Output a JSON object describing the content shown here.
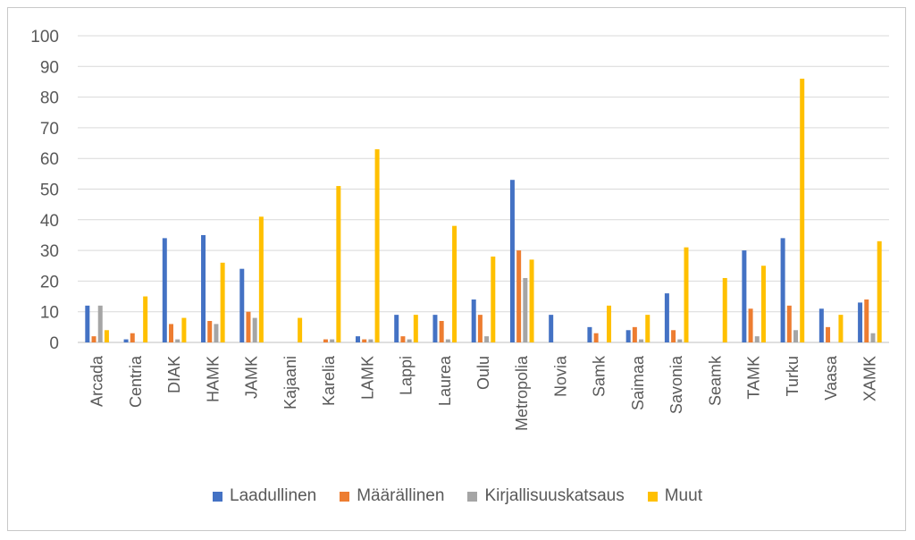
{
  "chart_data": {
    "type": "bar",
    "title": "",
    "xlabel": "",
    "ylabel": "",
    "ylim": [
      0,
      100
    ],
    "yticks": [
      0,
      10,
      20,
      30,
      40,
      50,
      60,
      70,
      80,
      90,
      100
    ],
    "grid": true,
    "legend_position": "bottom",
    "categories": [
      "Arcada",
      "Centria",
      "DIAK",
      "HAMK",
      "JAMK",
      "Kajaani",
      "Karelia",
      "LAMK",
      "Lappi",
      "Laurea",
      "Oulu",
      "Metropolia",
      "Novia",
      "Samk",
      "Saimaa",
      "Savonia",
      "Seamk",
      "TAMK",
      "Turku",
      "Vaasa",
      "XAMK"
    ],
    "series": [
      {
        "name": "Laadullinen",
        "color": "#4472C4",
        "values": [
          12,
          1,
          34,
          35,
          24,
          0,
          0,
          2,
          9,
          9,
          14,
          53,
          9,
          5,
          4,
          16,
          0,
          30,
          34,
          11,
          13
        ]
      },
      {
        "name": "Määrällinen",
        "color": "#ED7D31",
        "values": [
          2,
          3,
          6,
          7,
          10,
          0,
          1,
          1,
          2,
          7,
          9,
          30,
          0,
          3,
          5,
          4,
          0,
          11,
          12,
          5,
          14
        ]
      },
      {
        "name": "Kirjallisuuskatsaus",
        "color": "#A5A5A5",
        "values": [
          12,
          0,
          1,
          6,
          8,
          0,
          1,
          1,
          1,
          1,
          2,
          21,
          0,
          0,
          1,
          1,
          0,
          2,
          4,
          0,
          3
        ]
      },
      {
        "name": "Muut",
        "color": "#FFC000",
        "values": [
          4,
          15,
          8,
          26,
          41,
          8,
          51,
          63,
          9,
          38,
          28,
          27,
          0,
          12,
          9,
          31,
          21,
          25,
          86,
          9,
          33
        ]
      }
    ]
  }
}
